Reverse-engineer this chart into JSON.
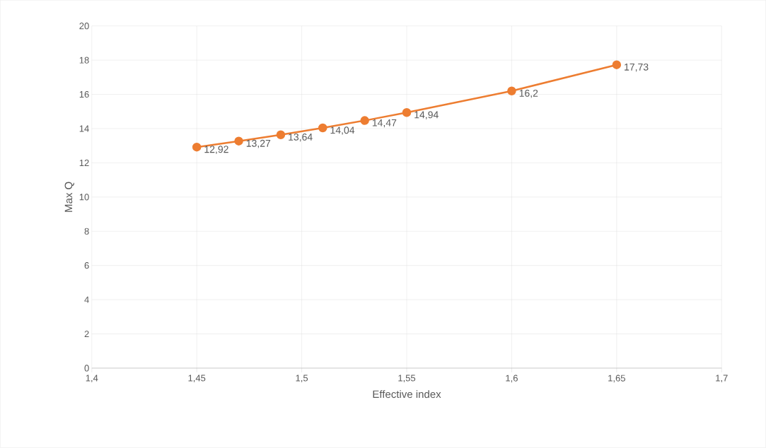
{
  "chart_data": {
    "type": "line",
    "xlabel": "Effective index",
    "ylabel": "Max Q",
    "x": [
      1.45,
      1.47,
      1.49,
      1.51,
      1.53,
      1.55,
      1.6,
      1.65
    ],
    "series": [
      {
        "color": "#ed7d31",
        "values": [
          12.92,
          13.27,
          13.64,
          14.04,
          14.47,
          14.94,
          16.2,
          17.73
        ],
        "value_labels": [
          "12,92",
          "13,27",
          "13,64",
          "14,04",
          "14,47",
          "14,94",
          "16,2",
          "17,73"
        ]
      }
    ],
    "xlim": [
      1.4,
      1.7
    ],
    "xticks": [
      {
        "value": 1.4,
        "label": "1,4"
      },
      {
        "value": 1.45,
        "label": "1,45"
      },
      {
        "value": 1.5,
        "label": "1,5"
      },
      {
        "value": 1.55,
        "label": "1,55"
      },
      {
        "value": 1.6,
        "label": "1,6"
      },
      {
        "value": 1.65,
        "label": "1,65"
      },
      {
        "value": 1.7,
        "label": "1,7"
      }
    ],
    "ylim": [
      0,
      20
    ],
    "yticks": [
      0,
      2,
      4,
      6,
      8,
      10,
      12,
      14,
      16,
      18,
      20
    ],
    "grid": true,
    "marker": "circle",
    "line_style": "solid"
  }
}
